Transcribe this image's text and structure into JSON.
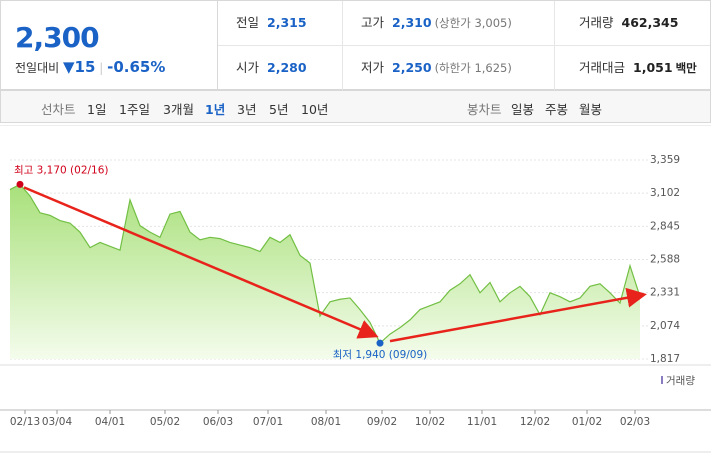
{
  "header": {
    "price": "2,300",
    "change_label": "전일대비",
    "change": "15",
    "change_rate": "-0.65%",
    "stats": [
      [
        {
          "label": "전일",
          "value": "2,315"
        },
        {
          "label": "고가",
          "value": "2,310",
          "note": "(상한가 3,005)"
        },
        {
          "label": "거래량",
          "value": "462,345"
        }
      ],
      [
        {
          "label": "시가",
          "value": "2,280"
        },
        {
          "label": "저가",
          "value": "2,250",
          "note": "(하한가 1,625)"
        },
        {
          "label": "거래대금",
          "value": "1,051",
          "note": "백만"
        }
      ]
    ]
  },
  "toolbar": {
    "line_label": "선차트",
    "periods": [
      "1일",
      "1주일",
      "3개월",
      "1년",
      "3년",
      "5년",
      "10년"
    ],
    "selected": 3,
    "candle_label": "봉차트",
    "candles": [
      "일봉",
      "주봉",
      "월봉"
    ]
  },
  "chart_data": {
    "type": "line",
    "color": "#72bf44",
    "values": [
      3130,
      3170,
      3080,
      2950,
      2930,
      2890,
      2870,
      2800,
      2680,
      2720,
      2690,
      2660,
      3050,
      2850,
      2800,
      2760,
      2940,
      2960,
      2800,
      2740,
      2760,
      2750,
      2720,
      2700,
      2680,
      2650,
      2760,
      2720,
      2780,
      2620,
      2560,
      2150,
      2260,
      2280,
      2290,
      2200,
      2100,
      1940,
      2010,
      2060,
      2120,
      2200,
      2230,
      2260,
      2350,
      2400,
      2470,
      2330,
      2410,
      2260,
      2330,
      2380,
      2300,
      2160,
      2330,
      2300,
      2260,
      2290,
      2380,
      2400,
      2330,
      2250,
      2540,
      2300
    ],
    "xlim": [
      0,
      63
    ],
    "xticks": [
      {
        "value": 1.5,
        "label": "02/13"
      },
      {
        "value": 4.7,
        "label": "03/04"
      },
      {
        "value": 10,
        "label": "04/01"
      },
      {
        "value": 15.5,
        "label": "05/02"
      },
      {
        "value": 20.8,
        "label": "06/03"
      },
      {
        "value": 25.8,
        "label": "07/01"
      },
      {
        "value": 31.6,
        "label": "08/01"
      },
      {
        "value": 37.2,
        "label": "09/02"
      },
      {
        "value": 42,
        "label": "10/02"
      },
      {
        "value": 47.2,
        "label": "11/01"
      },
      {
        "value": 52.5,
        "label": "12/02"
      },
      {
        "value": 57.7,
        "label": "01/02"
      },
      {
        "value": 62.5,
        "label": "02/03"
      }
    ],
    "ylim": [
      1817,
      3359
    ],
    "yticks": [
      {
        "value": 1817,
        "label": "1,817"
      },
      {
        "value": 2074,
        "label": "2,074"
      },
      {
        "value": 2331,
        "label": "2,331"
      },
      {
        "value": 2588,
        "label": "2,588"
      },
      {
        "value": 2845,
        "label": "2,845"
      },
      {
        "value": 3102,
        "label": "3,102"
      },
      {
        "value": 3359,
        "label": "3,359"
      }
    ],
    "grid": true,
    "annotations": [
      {
        "index": 1,
        "label": "최고 3,170 (02/16)",
        "color": "#d0021b"
      },
      {
        "index": 37,
        "label": "최저 1,940 (09/09)",
        "color": "#1a62c6"
      }
    ],
    "volume_label": "거래량"
  }
}
